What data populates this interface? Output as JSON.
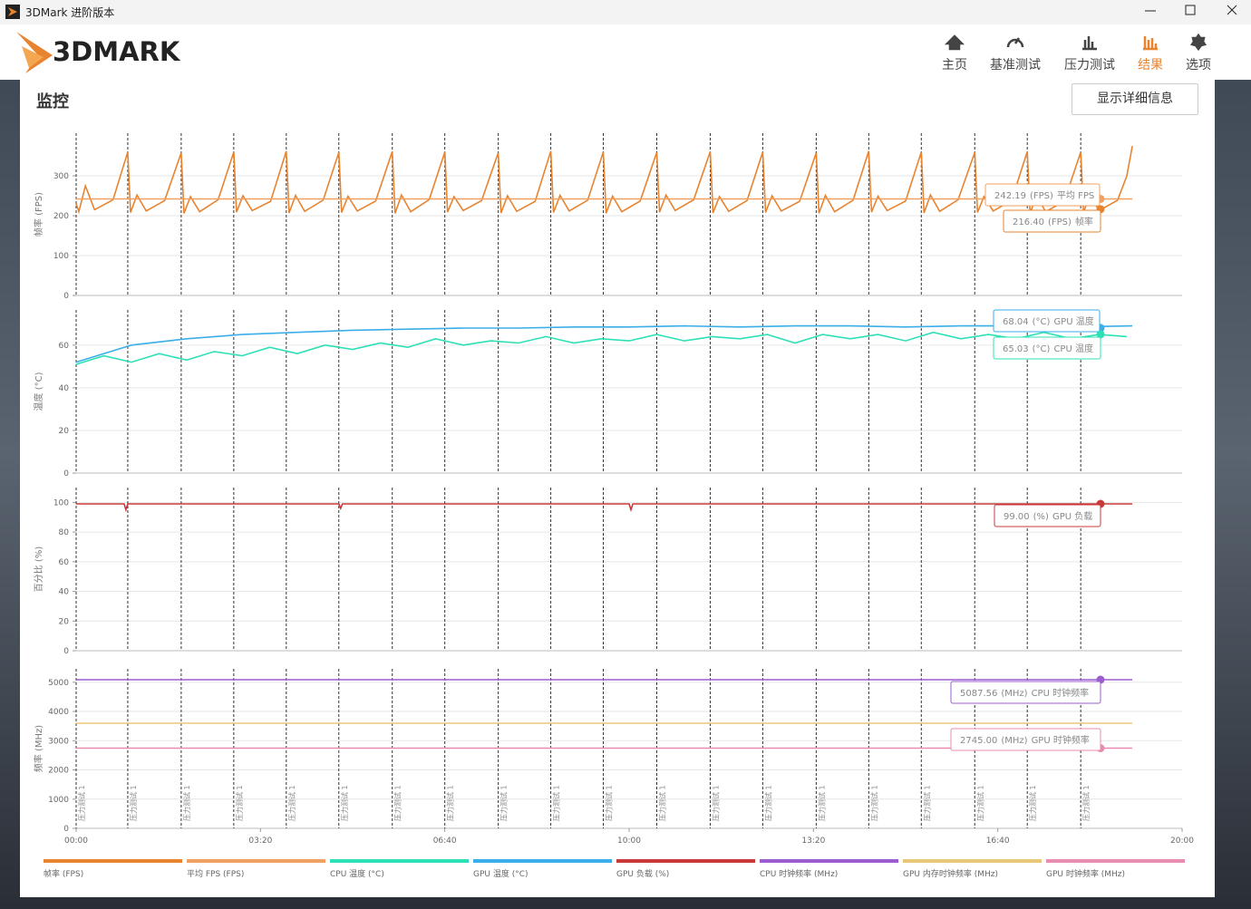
{
  "window": {
    "title": "3DMark 进阶版本"
  },
  "header": {
    "logo": "3DMARK",
    "nav": [
      "主页",
      "基准测试",
      "压力测试",
      "结果",
      "选项"
    ],
    "active": 3
  },
  "section": {
    "title": "监控",
    "button": "显示详细信息"
  },
  "markers": {
    "x": [
      0,
      56,
      114,
      171,
      228,
      285,
      343,
      400,
      458,
      515,
      572,
      630,
      688,
      745,
      803,
      860,
      917,
      975,
      1032,
      1090
    ],
    "label": "压力测试 1"
  },
  "chart_data": [
    {
      "type": "line",
      "ylabel": "帧率 (FPS)",
      "xlim": [
        0,
        1200
      ],
      "ylim": [
        0,
        407
      ],
      "yticks": [
        0,
        100,
        200,
        300
      ],
      "grid": true,
      "series": [
        {
          "name": "帧率 (FPS)",
          "color": "#e8832f",
          "x": [
            0,
            3,
            10,
            20,
            40,
            56,
            59,
            66,
            76,
            96,
            114,
            117,
            124,
            134,
            154,
            171,
            174,
            181,
            191,
            211,
            228,
            231,
            238,
            248,
            268,
            285,
            288,
            295,
            305,
            325,
            343,
            346,
            353,
            363,
            383,
            400,
            403,
            410,
            420,
            440,
            458,
            461,
            468,
            478,
            498,
            515,
            518,
            525,
            535,
            555,
            572,
            575,
            582,
            592,
            612,
            630,
            633,
            640,
            650,
            670,
            688,
            691,
            698,
            708,
            728,
            745,
            748,
            755,
            765,
            785,
            803,
            806,
            813,
            823,
            843,
            860,
            863,
            870,
            880,
            900,
            917,
            920,
            927,
            937,
            957,
            975,
            978,
            985,
            995,
            1015,
            1032,
            1035,
            1042,
            1052,
            1072,
            1090,
            1093,
            1100,
            1110,
            1130,
            1140,
            1146
          ],
          "values": [
            230,
            210,
            275,
            215,
            240,
            360,
            208,
            252,
            212,
            238,
            358,
            206,
            248,
            210,
            240,
            360,
            209,
            250,
            213,
            236,
            362,
            207,
            251,
            211,
            239,
            359,
            208,
            249,
            212,
            237,
            361,
            206,
            252,
            210,
            240,
            360,
            209,
            248,
            213,
            238,
            358,
            207,
            250,
            211,
            236,
            362,
            208,
            251,
            212,
            239,
            360,
            206,
            249,
            210,
            237,
            359,
            209,
            252,
            213,
            240,
            361,
            207,
            248,
            211,
            238,
            360,
            208,
            250,
            212,
            236,
            358,
            206,
            251,
            210,
            239,
            362,
            209,
            249,
            213,
            237,
            360,
            207,
            252,
            211,
            240,
            359,
            208,
            248,
            212,
            238,
            361,
            206,
            250,
            210,
            236,
            360,
            209,
            251,
            213,
            239,
            300,
            375
          ]
        },
        {
          "name": "平均 FPS (FPS)",
          "color": "#f0a060",
          "x": [
            0,
            1146
          ],
          "values": [
            242.19,
            242.19
          ]
        }
      ],
      "tooltips": [
        {
          "value": 242.19,
          "unit": "(FPS)",
          "name": "平均 FPS"
        },
        {
          "value": {
            "value": 216.4,
            "label": "216.40"
          },
          "unit": "(FPS)",
          "name": "帧率"
        }
      ]
    },
    {
      "type": "line",
      "ylabel": "温度 (°C)",
      "xlim": [
        0,
        1200
      ],
      "ylim": [
        0,
        76.5
      ],
      "yticks": [
        0,
        20,
        40,
        60
      ],
      "grid": true,
      "series": [
        {
          "name": "CPU 温度 (°C)",
          "color": "#2de0b5",
          "x": [
            0,
            30,
            60,
            90,
            120,
            150,
            180,
            210,
            240,
            270,
            300,
            330,
            360,
            390,
            420,
            450,
            480,
            510,
            540,
            570,
            600,
            630,
            660,
            690,
            720,
            750,
            780,
            810,
            840,
            870,
            900,
            930,
            960,
            990,
            1020,
            1050,
            1080,
            1110,
            1140
          ],
          "values": [
            51,
            55,
            52,
            56,
            53,
            57,
            55,
            59,
            56,
            60,
            58,
            61,
            59,
            63,
            60,
            62,
            61,
            64,
            61,
            63,
            62,
            65,
            62,
            64,
            63,
            65,
            61,
            65,
            63,
            65,
            62,
            66,
            63,
            65,
            63,
            66,
            63,
            65,
            64
          ]
        },
        {
          "name": "GPU 温度 (°C)",
          "color": "#3aaee8",
          "x": [
            0,
            60,
            120,
            180,
            240,
            300,
            360,
            420,
            480,
            540,
            600,
            660,
            720,
            780,
            840,
            900,
            960,
            1020,
            1080,
            1146
          ],
          "values": [
            52,
            60,
            63,
            65,
            66,
            67,
            67.5,
            68,
            68,
            68.5,
            68.5,
            69,
            68.5,
            69,
            69,
            68.5,
            69,
            69,
            68.5,
            69
          ]
        }
      ],
      "tooltips": [
        {
          "value": 68.04,
          "unit": "(°C)",
          "name": "GPU 温度"
        },
        {
          "value": 65.03,
          "unit": "(°C)",
          "name": "CPU 温度"
        }
      ]
    },
    {
      "type": "line",
      "ylabel": "百分比 (%)",
      "xlim": [
        0,
        1200
      ],
      "ylim": [
        0,
        110
      ],
      "yticks": [
        0,
        20,
        40,
        60,
        80,
        100
      ],
      "grid": true,
      "series": [
        {
          "name": "GPU 负载 (%)",
          "color": "#c83a3a",
          "x": [
            0,
            52,
            54,
            56,
            285,
            287,
            289,
            600,
            602,
            604,
            1146
          ],
          "values": [
            99,
            99,
            95,
            99,
            99,
            96,
            99,
            99,
            95,
            99,
            99
          ]
        }
      ],
      "tooltips": [
        {
          "value": {
            "value": 99,
            "label": "99.00"
          },
          "unit": "(%)",
          "name": "GPU 负载"
        }
      ]
    },
    {
      "type": "line",
      "ylabel": "频率 (MHz)",
      "xlim": [
        0,
        1200
      ],
      "ylim": [
        0,
        5460
      ],
      "yticks": [
        0,
        1000,
        2000,
        3000,
        4000,
        5000
      ],
      "grid": true,
      "xticks": [
        {
          "value": 0,
          "label": "00:00"
        },
        {
          "value": 200,
          "label": "03:20"
        },
        {
          "value": 400,
          "label": "06:40"
        },
        {
          "value": 600,
          "label": "10:00"
        },
        {
          "value": 800,
          "label": "13:20"
        },
        {
          "value": 1000,
          "label": "16:40"
        },
        {
          "value": 1200,
          "label": "20:00"
        }
      ],
      "series": [
        {
          "name": "CPU 时钟频率 (MHz)",
          "color": "#9b5dd0",
          "x": [
            0,
            1146
          ],
          "values": [
            5087.56,
            5087.56
          ]
        },
        {
          "name": "GPU 内存时钟频率 (MHz)",
          "color": "#e8c878",
          "x": [
            0,
            1146
          ],
          "values": [
            3600,
            3600
          ]
        },
        {
          "name": "GPU 时钟频率 (MHz)",
          "color": "#e88cb0",
          "x": [
            0,
            1146
          ],
          "values": [
            2745,
            2745
          ]
        }
      ],
      "tooltips": [
        {
          "value": 5087.56,
          "unit": "(MHz)",
          "name": "CPU 时钟频率"
        },
        {
          "value": {
            "value": 2745,
            "label": "2745.00"
          },
          "unit": "(MHz)",
          "name": "GPU 时钟频率"
        }
      ]
    }
  ]
}
